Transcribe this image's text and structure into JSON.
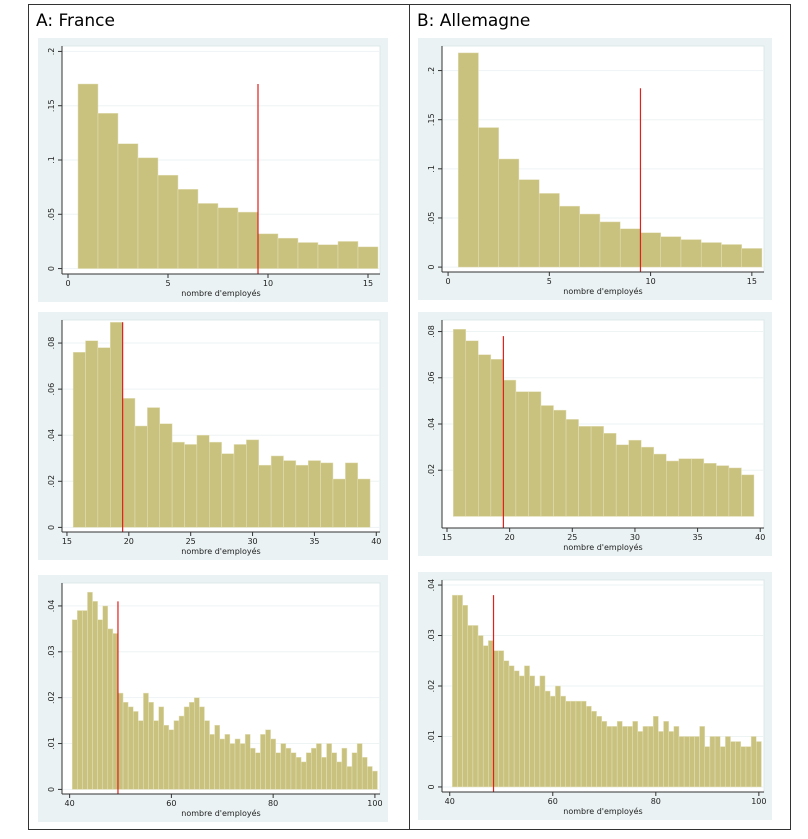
{
  "headers": [
    "A: France",
    "B: Allemagne"
  ],
  "chart_data": [
    {
      "type": "histogram",
      "color": "#c9c17e",
      "x_label": "nombre d'employés",
      "bins": [
        0.5,
        1.5,
        2.5,
        3.5,
        4.5,
        5.5,
        6.5,
        7.5,
        8.5,
        9.5,
        10.5,
        11.5,
        12.5,
        13.5,
        14.5,
        15.5
      ],
      "values": [
        0.17,
        0.143,
        0.115,
        0.102,
        0.086,
        0.073,
        0.06,
        0.056,
        0.052,
        0.032,
        0.028,
        0.024,
        0.022,
        0.025,
        0.02
      ],
      "xlim": [
        -0.3,
        15.6
      ],
      "ylim": [
        -0.005,
        0.205
      ],
      "xticks": [
        0,
        5,
        10,
        15
      ],
      "yticks": [
        0,
        {
          "value": 0.05,
          "label": ".05"
        },
        {
          "value": 0.1,
          "label": ".1"
        },
        {
          "value": 0.15,
          "label": ".15"
        },
        {
          "value": 0.2,
          "label": ".2"
        }
      ],
      "grid": true,
      "vline": {
        "x": 9.5,
        "y": 0.17
      }
    },
    {
      "type": "histogram",
      "color": "#c9c17e",
      "x_label": "nombre d'employés",
      "bins": [
        0.5,
        1.5,
        2.5,
        3.5,
        4.5,
        5.5,
        6.5,
        7.5,
        8.5,
        9.5,
        10.5,
        11.5,
        12.5,
        13.5,
        14.5,
        15.5
      ],
      "values": [
        0.218,
        0.142,
        0.11,
        0.089,
        0.075,
        0.062,
        0.054,
        0.046,
        0.039,
        0.035,
        0.031,
        0.028,
        0.025,
        0.023,
        0.019
      ],
      "xlim": [
        -0.3,
        15.6
      ],
      "ylim": [
        -0.005,
        0.225
      ],
      "xticks": [
        0,
        5,
        10,
        15
      ],
      "yticks": [
        0,
        {
          "value": 0.05,
          "label": ".05"
        },
        {
          "value": 0.1,
          "label": ".1"
        },
        {
          "value": 0.15,
          "label": ".15"
        },
        {
          "value": 0.2,
          "label": ".2"
        }
      ],
      "grid": true,
      "vline": {
        "x": 9.5,
        "y": 0.182
      }
    },
    {
      "type": "histogram",
      "color": "#c9c17e",
      "x_label": "nombre d'employés",
      "bins": [
        15.5,
        16.5,
        17.5,
        18.5,
        19.5,
        20.5,
        21.5,
        22.5,
        23.5,
        24.5,
        25.5,
        26.5,
        27.5,
        28.5,
        29.5,
        30.5,
        31.5,
        32.5,
        33.5,
        34.5,
        35.5,
        36.5,
        37.5,
        38.5,
        39.5
      ],
      "values": [
        0.076,
        0.081,
        0.078,
        0.089,
        0.056,
        0.044,
        0.052,
        0.045,
        0.037,
        0.036,
        0.04,
        0.037,
        0.032,
        0.036,
        0.038,
        0.027,
        0.031,
        0.029,
        0.027,
        0.029,
        0.028,
        0.021,
        0.028,
        0.021
      ],
      "xlim": [
        14.6,
        40.3
      ],
      "ylim": [
        -0.002,
        0.09
      ],
      "xticks": [
        15,
        20,
        25,
        30,
        35,
        40
      ],
      "yticks": [
        0,
        {
          "value": 0.02,
          "label": ".02"
        },
        {
          "value": 0.04,
          "label": ".04"
        },
        {
          "value": 0.06,
          "label": ".06"
        },
        {
          "value": 0.08,
          "label": ".08"
        }
      ],
      "grid": true,
      "vline": {
        "x": 19.5,
        "y": 0.089
      }
    },
    {
      "type": "histogram",
      "color": "#c9c17e",
      "x_label": "nombre d'employés",
      "bins": [
        15.5,
        16.5,
        17.5,
        18.5,
        19.5,
        20.5,
        21.5,
        22.5,
        23.5,
        24.5,
        25.5,
        26.5,
        27.5,
        28.5,
        29.5,
        30.5,
        31.5,
        32.5,
        33.5,
        34.5,
        35.5,
        36.5,
        37.5,
        38.5,
        39.5
      ],
      "values": [
        0.081,
        0.076,
        0.07,
        0.068,
        0.059,
        0.054,
        0.054,
        0.048,
        0.046,
        0.042,
        0.039,
        0.039,
        0.036,
        0.031,
        0.033,
        0.03,
        0.027,
        0.024,
        0.025,
        0.025,
        0.023,
        0.022,
        0.021,
        0.018
      ],
      "xlim": [
        14.6,
        40.3
      ],
      "ylim": [
        -0.005,
        0.085
      ],
      "xticks": [
        15,
        20,
        25,
        30,
        35,
        40
      ],
      "yticks": [
        {
          "value": 0.02,
          "label": ".02"
        },
        {
          "value": 0.04,
          "label": ".04"
        },
        {
          "value": 0.06,
          "label": ".06"
        },
        {
          "value": 0.08,
          "label": ".08"
        }
      ],
      "grid": true,
      "vline": {
        "x": 19.5,
        "y": 0.078
      }
    },
    {
      "type": "histogram",
      "color": "#c9c17e",
      "x_label": "nombre d'employés",
      "bins": [
        40.5,
        41.5,
        42.5,
        43.5,
        44.5,
        45.5,
        46.5,
        47.5,
        48.5,
        49.5,
        50.5,
        51.5,
        52.5,
        53.5,
        54.5,
        55.5,
        56.5,
        57.5,
        58.5,
        59.5,
        60.5,
        61.5,
        62.5,
        63.5,
        64.5,
        65.5,
        66.5,
        67.5,
        68.5,
        69.5,
        70.5,
        71.5,
        72.5,
        73.5,
        74.5,
        75.5,
        76.5,
        77.5,
        78.5,
        79.5,
        80.5,
        81.5,
        82.5,
        83.5,
        84.5,
        85.5,
        86.5,
        87.5,
        88.5,
        89.5,
        90.5,
        91.5,
        92.5,
        93.5,
        94.5,
        95.5,
        96.5,
        97.5,
        98.5,
        99.5,
        100.5
      ],
      "values": [
        0.037,
        0.039,
        0.039,
        0.043,
        0.041,
        0.037,
        0.04,
        0.035,
        0.034,
        0.021,
        0.019,
        0.018,
        0.017,
        0.015,
        0.021,
        0.019,
        0.015,
        0.018,
        0.014,
        0.013,
        0.015,
        0.016,
        0.018,
        0.019,
        0.02,
        0.018,
        0.015,
        0.012,
        0.014,
        0.011,
        0.012,
        0.01,
        0.011,
        0.01,
        0.012,
        0.009,
        0.008,
        0.012,
        0.013,
        0.011,
        0.008,
        0.01,
        0.009,
        0.008,
        0.007,
        0.006,
        0.008,
        0.009,
        0.01,
        0.007,
        0.01,
        0.008,
        0.006,
        0.009,
        0.005,
        0.008,
        0.01,
        0.007,
        0.005,
        0.004
      ],
      "xlim": [
        38.5,
        101
      ],
      "ylim": [
        -0.001,
        0.045
      ],
      "xticks": [
        40,
        60,
        80,
        100
      ],
      "yticks": [
        0,
        {
          "value": 0.01,
          "label": ".01"
        },
        {
          "value": 0.02,
          "label": ".02"
        },
        {
          "value": 0.03,
          "label": ".03"
        },
        {
          "value": 0.04,
          "label": ".04"
        }
      ],
      "grid": true,
      "vline": {
        "x": 49.5,
        "y": 0.041
      }
    },
    {
      "type": "histogram",
      "color": "#c9c17e",
      "x_label": "nombre d'employés",
      "bins": [
        40.5,
        41.5,
        42.5,
        43.5,
        44.5,
        45.5,
        46.5,
        47.5,
        48.5,
        49.5,
        50.5,
        51.5,
        52.5,
        53.5,
        54.5,
        55.5,
        56.5,
        57.5,
        58.5,
        59.5,
        60.5,
        61.5,
        62.5,
        63.5,
        64.5,
        65.5,
        66.5,
        67.5,
        68.5,
        69.5,
        70.5,
        71.5,
        72.5,
        73.5,
        74.5,
        75.5,
        76.5,
        77.5,
        78.5,
        79.5,
        80.5,
        81.5,
        82.5,
        83.5,
        84.5,
        85.5,
        86.5,
        87.5,
        88.5,
        89.5,
        90.5,
        91.5,
        92.5,
        93.5,
        94.5,
        95.5,
        96.5,
        97.5,
        98.5,
        99.5,
        100.5
      ],
      "values": [
        0.038,
        0.038,
        0.036,
        0.032,
        0.032,
        0.03,
        0.028,
        0.029,
        0.027,
        0.027,
        0.025,
        0.024,
        0.023,
        0.022,
        0.024,
        0.022,
        0.02,
        0.022,
        0.019,
        0.018,
        0.02,
        0.018,
        0.017,
        0.017,
        0.017,
        0.017,
        0.016,
        0.015,
        0.014,
        0.013,
        0.012,
        0.012,
        0.013,
        0.012,
        0.012,
        0.013,
        0.011,
        0.012,
        0.012,
        0.014,
        0.011,
        0.013,
        0.011,
        0.012,
        0.01,
        0.01,
        0.01,
        0.01,
        0.012,
        0.008,
        0.01,
        0.01,
        0.008,
        0.01,
        0.009,
        0.009,
        0.008,
        0.008,
        0.01,
        0.009
      ],
      "xlim": [
        38.5,
        101
      ],
      "ylim": [
        -0.001,
        0.041
      ],
      "xticks": [
        40,
        60,
        80,
        100
      ],
      "yticks": [
        0,
        {
          "value": 0.01,
          "label": ".01"
        },
        {
          "value": 0.02,
          "label": ".02"
        },
        {
          "value": 0.03,
          "label": ".03"
        },
        {
          "value": 0.04,
          "label": ".04"
        }
      ],
      "grid": true,
      "vline": {
        "x": 48.5,
        "y": 0.038
      }
    }
  ]
}
